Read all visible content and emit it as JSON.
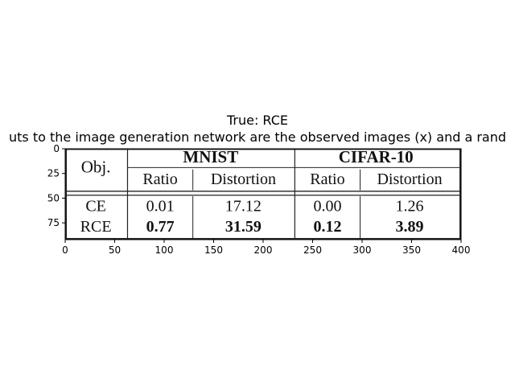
{
  "chart_data": {
    "type": "table",
    "title": "True: RCE",
    "subtitle": "uts to the image generation network are the observed images (x) and a rand",
    "xlabel": "",
    "ylabel": "",
    "xlim": [
      0,
      400
    ],
    "ylim": [
      92,
      0
    ],
    "x_ticks": [
      "0",
      "50",
      "100",
      "150",
      "200",
      "250",
      "300",
      "350",
      "400"
    ],
    "y_ticks": [
      "0",
      "25",
      "50",
      "75"
    ],
    "table": {
      "header_left": "Obj.",
      "groups": [
        "MNIST",
        "CIFAR-10"
      ],
      "subheaders": [
        "Ratio",
        "Distortion",
        "Ratio",
        "Distortion"
      ],
      "rows": [
        {
          "label": "CE",
          "values": [
            "0.01",
            "17.12",
            "0.00",
            "1.26"
          ],
          "bold": false
        },
        {
          "label": "RCE",
          "values": [
            "0.77",
            "31.59",
            "0.12",
            "3.89"
          ],
          "bold": true
        }
      ]
    }
  }
}
